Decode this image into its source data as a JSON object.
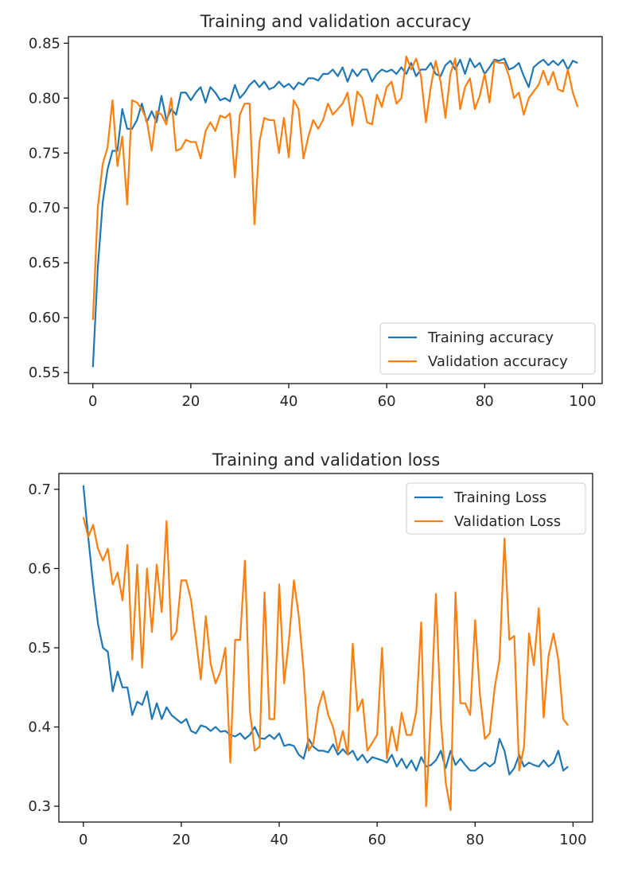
{
  "chart_data": [
    {
      "type": "line",
      "title": "Training and validation accuracy",
      "xlabel": "",
      "ylabel": "",
      "xlim": [
        -5,
        104
      ],
      "ylim": [
        0.54,
        0.856
      ],
      "xticks": [
        0,
        20,
        40,
        60,
        80,
        100
      ],
      "yticks": [
        0.55,
        0.6,
        0.65,
        0.7,
        0.75,
        0.8,
        0.85
      ],
      "ytick_labels": [
        "0.55",
        "0.60",
        "0.65",
        "0.70",
        "0.75",
        "0.80",
        "0.85"
      ],
      "legend_position": "lower-right",
      "grid": false,
      "series": [
        {
          "name": "Training accuracy",
          "color": "#1f77b4",
          "values": [
            0.555,
            0.645,
            0.705,
            0.735,
            0.752,
            0.752,
            0.79,
            0.772,
            0.772,
            0.78,
            0.795,
            0.778,
            0.788,
            0.778,
            0.802,
            0.78,
            0.79,
            0.785,
            0.805,
            0.805,
            0.798,
            0.805,
            0.81,
            0.796,
            0.81,
            0.805,
            0.798,
            0.8,
            0.797,
            0.812,
            0.8,
            0.805,
            0.812,
            0.816,
            0.81,
            0.815,
            0.808,
            0.81,
            0.815,
            0.81,
            0.813,
            0.808,
            0.814,
            0.812,
            0.818,
            0.818,
            0.816,
            0.822,
            0.822,
            0.826,
            0.82,
            0.828,
            0.815,
            0.826,
            0.82,
            0.826,
            0.826,
            0.815,
            0.822,
            0.826,
            0.824,
            0.826,
            0.822,
            0.828,
            0.822,
            0.832,
            0.82,
            0.826,
            0.826,
            0.832,
            0.822,
            0.82,
            0.83,
            0.834,
            0.826,
            0.835,
            0.822,
            0.836,
            0.828,
            0.832,
            0.822,
            0.828,
            0.835,
            0.834,
            0.836,
            0.826,
            0.828,
            0.832,
            0.82,
            0.81,
            0.828,
            0.832,
            0.835,
            0.83,
            0.834,
            0.83,
            0.835,
            0.826,
            0.834,
            0.832
          ]
        },
        {
          "name": "Validation accuracy",
          "color": "#ff7f0e",
          "values": [
            0.598,
            0.7,
            0.74,
            0.755,
            0.798,
            0.738,
            0.765,
            0.703,
            0.798,
            0.796,
            0.79,
            0.78,
            0.752,
            0.788,
            0.785,
            0.776,
            0.8,
            0.752,
            0.754,
            0.762,
            0.76,
            0.76,
            0.745,
            0.77,
            0.778,
            0.77,
            0.784,
            0.782,
            0.786,
            0.728,
            0.785,
            0.795,
            0.795,
            0.685,
            0.76,
            0.782,
            0.78,
            0.78,
            0.75,
            0.782,
            0.746,
            0.798,
            0.79,
            0.745,
            0.765,
            0.78,
            0.772,
            0.78,
            0.795,
            0.785,
            0.79,
            0.795,
            0.805,
            0.775,
            0.806,
            0.8,
            0.778,
            0.776,
            0.803,
            0.792,
            0.81,
            0.815,
            0.795,
            0.8,
            0.838,
            0.826,
            0.836,
            0.82,
            0.778,
            0.81,
            0.834,
            0.815,
            0.782,
            0.822,
            0.836,
            0.79,
            0.81,
            0.818,
            0.79,
            0.802,
            0.822,
            0.796,
            0.834,
            0.832,
            0.832,
            0.82,
            0.8,
            0.805,
            0.785,
            0.8,
            0.806,
            0.812,
            0.825,
            0.812,
            0.824,
            0.808,
            0.806,
            0.826,
            0.805,
            0.792
          ]
        }
      ]
    },
    {
      "type": "line",
      "title": "Training and validation loss",
      "xlabel": "",
      "ylabel": "",
      "xlim": [
        -5,
        104
      ],
      "ylim": [
        0.28,
        0.72
      ],
      "xticks": [
        0,
        20,
        40,
        60,
        80,
        100
      ],
      "yticks": [
        0.3,
        0.4,
        0.5,
        0.6,
        0.7
      ],
      "ytick_labels": [
        "0.3",
        "0.4",
        "0.5",
        "0.6",
        "0.7"
      ],
      "legend_position": "upper-right",
      "grid": false,
      "series": [
        {
          "name": "Training Loss",
          "color": "#1f77b4",
          "values": [
            0.705,
            0.64,
            0.58,
            0.53,
            0.5,
            0.495,
            0.445,
            0.47,
            0.45,
            0.45,
            0.415,
            0.432,
            0.428,
            0.445,
            0.41,
            0.43,
            0.41,
            0.425,
            0.415,
            0.41,
            0.405,
            0.41,
            0.395,
            0.392,
            0.402,
            0.4,
            0.395,
            0.4,
            0.394,
            0.395,
            0.39,
            0.388,
            0.392,
            0.385,
            0.39,
            0.4,
            0.386,
            0.385,
            0.39,
            0.385,
            0.392,
            0.376,
            0.378,
            0.376,
            0.365,
            0.36,
            0.385,
            0.375,
            0.37,
            0.37,
            0.368,
            0.378,
            0.365,
            0.372,
            0.365,
            0.37,
            0.358,
            0.365,
            0.355,
            0.362,
            0.36,
            0.358,
            0.355,
            0.365,
            0.35,
            0.36,
            0.348,
            0.358,
            0.345,
            0.362,
            0.35,
            0.352,
            0.358,
            0.37,
            0.348,
            0.37,
            0.352,
            0.36,
            0.352,
            0.345,
            0.345,
            0.35,
            0.355,
            0.35,
            0.355,
            0.385,
            0.37,
            0.34,
            0.348,
            0.365,
            0.35,
            0.355,
            0.352,
            0.35,
            0.358,
            0.35,
            0.355,
            0.37,
            0.345,
            0.35
          ]
        },
        {
          "name": "Validation Loss",
          "color": "#ff7f0e",
          "values": [
            0.665,
            0.64,
            0.655,
            0.625,
            0.61,
            0.625,
            0.58,
            0.595,
            0.56,
            0.63,
            0.485,
            0.605,
            0.475,
            0.6,
            0.52,
            0.605,
            0.545,
            0.66,
            0.51,
            0.52,
            0.585,
            0.585,
            0.56,
            0.51,
            0.46,
            0.54,
            0.48,
            0.455,
            0.47,
            0.5,
            0.355,
            0.51,
            0.51,
            0.61,
            0.42,
            0.37,
            0.375,
            0.57,
            0.41,
            0.41,
            0.58,
            0.455,
            0.51,
            0.585,
            0.54,
            0.47,
            0.37,
            0.38,
            0.425,
            0.445,
            0.415,
            0.4,
            0.37,
            0.395,
            0.365,
            0.505,
            0.42,
            0.435,
            0.37,
            0.38,
            0.39,
            0.5,
            0.36,
            0.4,
            0.37,
            0.418,
            0.39,
            0.39,
            0.42,
            0.532,
            0.3,
            0.42,
            0.568,
            0.41,
            0.33,
            0.295,
            0.57,
            0.43,
            0.43,
            0.415,
            0.535,
            0.44,
            0.385,
            0.392,
            0.45,
            0.485,
            0.638,
            0.51,
            0.515,
            0.345,
            0.375,
            0.518,
            0.478,
            0.55,
            0.412,
            0.49,
            0.518,
            0.485,
            0.41,
            0.402
          ]
        }
      ]
    }
  ]
}
